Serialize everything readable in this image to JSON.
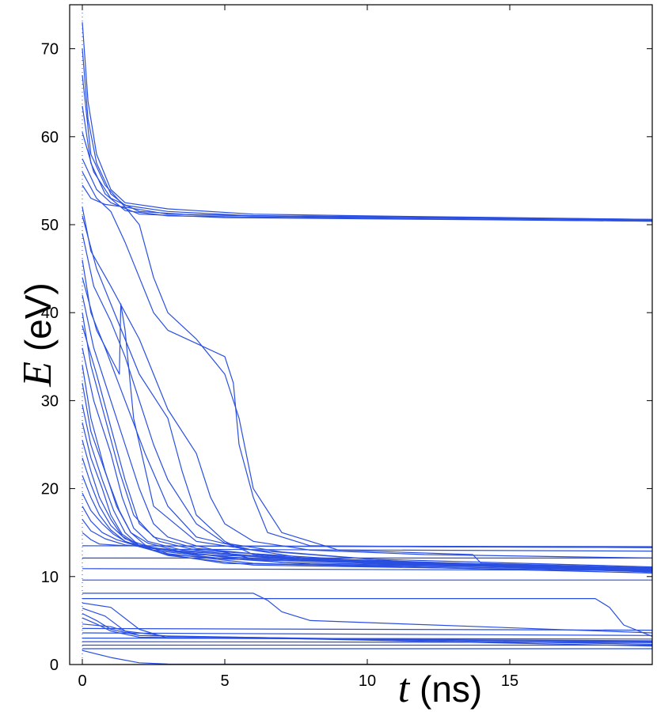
{
  "chart_data": {
    "type": "line",
    "title": "",
    "xlabel": {
      "var": "t",
      "unit": " (ns)"
    },
    "ylabel": {
      "var": "E",
      "unit": " (eV)"
    },
    "xlim": [
      0,
      20
    ],
    "ylim": [
      0,
      75
    ],
    "xticks": [
      "0",
      "5",
      "10",
      "15"
    ],
    "yticks": [
      "0",
      "10",
      "20",
      "30",
      "40",
      "50",
      "60",
      "70"
    ],
    "grid": false,
    "legend": "none",
    "line_color": "#2a4fe0",
    "series": [
      {
        "x": [
          0,
          0.2,
          0.5,
          1,
          1.5,
          3,
          6,
          10,
          15,
          20
        ],
        "y": [
          73,
          64,
          58,
          54,
          52.5,
          51.8,
          51.2,
          51,
          50.8,
          50.6
        ]
      },
      {
        "x": [
          0,
          0.2,
          0.5,
          1,
          1.5,
          3,
          6,
          10,
          15,
          20
        ],
        "y": [
          70,
          62,
          57,
          53.5,
          52.2,
          51.5,
          51,
          50.9,
          50.7,
          50.5
        ]
      },
      {
        "x": [
          0,
          0.3,
          0.8,
          1.5,
          3,
          8,
          20
        ],
        "y": [
          67,
          58,
          54.5,
          52,
          51.2,
          50.9,
          50.5
        ]
      },
      {
        "x": [
          0,
          0.3,
          0.8,
          1.5,
          3,
          8,
          20
        ],
        "y": [
          63.5,
          57,
          53.5,
          51.6,
          51,
          50.8,
          50.4
        ]
      },
      {
        "x": [
          0,
          0.4,
          1,
          2,
          4,
          10,
          20
        ],
        "y": [
          60.5,
          56,
          53,
          51.5,
          51.1,
          50.9,
          50.6
        ]
      },
      {
        "x": [
          0,
          0.5,
          1,
          2,
          5,
          20
        ],
        "y": [
          57.5,
          54,
          52.5,
          51.2,
          50.8,
          50.4
        ]
      },
      {
        "x": [
          0,
          0.5,
          1,
          1.5,
          2,
          2.5,
          3,
          4,
          5,
          5.3,
          5.5,
          6,
          6.5,
          8,
          12,
          20
        ],
        "y": [
          56,
          53,
          51.5,
          48,
          44,
          40,
          38,
          36.5,
          35,
          32,
          25,
          19,
          15,
          13.5,
          13.4,
          13.3
        ]
      },
      {
        "x": [
          0,
          0.3,
          0.8,
          1.5,
          2,
          2.5,
          3,
          4,
          5,
          5.5,
          6,
          7,
          9,
          13.7,
          14,
          20
        ],
        "y": [
          54.5,
          53,
          52.3,
          52,
          50,
          44,
          40,
          37,
          33,
          28,
          20,
          15,
          13,
          12.5,
          11.5,
          11
        ]
      },
      {
        "x": [
          0,
          0.3,
          1,
          1.5,
          2,
          2.5,
          3,
          4,
          4.5,
          5,
          6,
          8,
          12,
          20
        ],
        "y": [
          52,
          47,
          43,
          40,
          37,
          33,
          29,
          24,
          19,
          16,
          14,
          13,
          12.5,
          12.1
        ]
      },
      {
        "x": [
          0,
          0.5,
          1,
          1.5,
          2,
          3,
          3.5,
          4,
          5,
          6,
          10,
          20
        ],
        "y": [
          51,
          45,
          41,
          37,
          33,
          28,
          22,
          17,
          14,
          12.5,
          11.5,
          11
        ]
      },
      {
        "x": [
          0,
          0.4,
          1,
          1.5,
          2,
          2.5,
          3,
          4,
          5,
          7,
          12,
          20
        ],
        "y": [
          49,
          43,
          39,
          35,
          30,
          25,
          21,
          16,
          13.8,
          12.8,
          11.5,
          10.9
        ]
      },
      {
        "x": [
          0,
          0.3,
          0.8,
          1.5,
          2.2,
          3,
          4,
          6,
          10,
          20
        ],
        "y": [
          46,
          40,
          36,
          30,
          24,
          18,
          14.5,
          13,
          12,
          11.1
        ]
      },
      {
        "x": [
          0,
          0.5,
          1.3,
          1.35,
          1.5,
          1.8,
          2.5,
          4,
          8,
          20
        ],
        "y": [
          44,
          38,
          33,
          41,
          38,
          28,
          18,
          14,
          12,
          10.8
        ]
      },
      {
        "x": [
          0,
          0.4,
          1,
          1.5,
          2,
          2.5,
          3,
          4,
          6,
          20
        ],
        "y": [
          42,
          36,
          30,
          25,
          20,
          16,
          14.5,
          13.5,
          12,
          10.7
        ]
      },
      {
        "x": [
          0,
          0.3,
          0.8,
          1.3,
          1.8,
          2.5,
          4,
          8,
          20
        ],
        "y": [
          40,
          34,
          28,
          22,
          17,
          14.5,
          13.2,
          12,
          10.6
        ]
      },
      {
        "x": [
          0,
          0.5,
          1,
          1.5,
          2,
          2.7,
          4,
          10,
          20
        ],
        "y": [
          38.5,
          33,
          27,
          21,
          16,
          14,
          13,
          11.8,
          10.9
        ]
      },
      {
        "x": [
          0,
          0.4,
          1,
          1.4,
          1.8,
          2.3,
          3.5,
          8,
          20
        ],
        "y": [
          36,
          30,
          24,
          19,
          15.5,
          14,
          13,
          11.9,
          10.5
        ]
      },
      {
        "x": [
          0,
          0.3,
          0.8,
          1.2,
          1.7,
          2.3,
          3.5,
          7,
          20
        ],
        "y": [
          34,
          28,
          22,
          18,
          15,
          13.8,
          12.8,
          11.6,
          10.8
        ]
      },
      {
        "x": [
          0,
          0.3,
          0.9,
          1.3,
          1.7,
          2.2,
          3,
          6,
          20
        ],
        "y": [
          32,
          26.5,
          21,
          17.5,
          15,
          13.6,
          12.6,
          11.5,
          10.4
        ]
      },
      {
        "x": [
          0,
          0.3,
          0.7,
          1.1,
          1.5,
          2,
          3,
          5,
          20
        ],
        "y": [
          29.5,
          25,
          21,
          17.5,
          15,
          13.5,
          12.5,
          11.5,
          10.7
        ]
      },
      {
        "x": [
          0,
          0.3,
          0.7,
          1,
          1.4,
          2,
          3,
          6,
          20
        ],
        "y": [
          27.5,
          23.5,
          20,
          17,
          14.8,
          13.5,
          12.4,
          11.3,
          10.6
        ]
      },
      {
        "x": [
          0,
          0.3,
          0.6,
          1,
          1.4,
          2,
          3,
          8,
          20
        ],
        "y": [
          25.5,
          22,
          19,
          16.5,
          14.6,
          13.4,
          12.5,
          11.4,
          10.9
        ]
      },
      {
        "x": [
          0,
          0.3,
          0.6,
          1,
          1.5,
          2.5,
          5,
          20
        ],
        "y": [
          23.5,
          20.5,
          18,
          15.8,
          14.3,
          13.2,
          12.2,
          10.8
        ]
      },
      {
        "x": [
          0,
          0.3,
          0.6,
          1,
          1.5,
          2.5,
          5,
          20
        ],
        "y": [
          21.5,
          19,
          17,
          15.3,
          14,
          13,
          12,
          10.6
        ]
      },
      {
        "x": [
          0,
          0.3,
          0.7,
          1.1,
          1.6,
          3,
          8,
          20
        ],
        "y": [
          19.5,
          17.5,
          16,
          14.8,
          13.8,
          13,
          11.8,
          10.9
        ]
      },
      {
        "x": [
          0,
          0.3,
          0.7,
          1.2,
          2,
          4,
          20
        ],
        "y": [
          18,
          16.3,
          15,
          14.2,
          13.4,
          12.5,
          10.8
        ]
      },
      {
        "x": [
          0,
          0.3,
          0.8,
          1.5,
          3,
          20
        ],
        "y": [
          16.5,
          15.2,
          14.3,
          13.6,
          13.1,
          12.9
        ]
      },
      {
        "x": [
          0,
          0.3,
          0.6,
          1.5,
          20
        ],
        "y": [
          15,
          14.2,
          13.7,
          13.5,
          13.3
        ]
      },
      {
        "x": [
          0,
          20
        ],
        "y": [
          13.5,
          13.4
        ]
      },
      {
        "x": [
          0,
          20
        ],
        "y": [
          12.1,
          12.1
        ]
      },
      {
        "x": [
          0,
          20
        ],
        "y": [
          10.9,
          10.7
        ]
      },
      {
        "x": [
          0,
          20
        ],
        "y": [
          9.6,
          9.6
        ]
      },
      {
        "x": [
          0,
          6,
          6.5,
          7,
          8,
          20
        ],
        "y": [
          8.1,
          8.1,
          7.3,
          6,
          5,
          3.6
        ]
      },
      {
        "x": [
          0,
          18,
          18.5,
          19,
          20
        ],
        "y": [
          7.5,
          7.5,
          6.5,
          4.5,
          3.2
        ]
      },
      {
        "x": [
          0,
          1,
          2,
          3,
          20
        ],
        "y": [
          7,
          6.5,
          4,
          3,
          2.7
        ]
      },
      {
        "x": [
          0,
          0.8,
          1.5,
          3,
          20
        ],
        "y": [
          6.4,
          5.5,
          3.8,
          3.2,
          2.5
        ]
      },
      {
        "x": [
          0,
          0.5,
          1,
          2,
          20
        ],
        "y": [
          5.8,
          5,
          4,
          3.3,
          2.3
        ]
      },
      {
        "x": [
          0,
          0.5,
          1,
          2,
          20
        ],
        "y": [
          5.3,
          4.6,
          3.8,
          3.1,
          2.6
        ]
      },
      {
        "x": [
          0,
          1,
          2,
          20
        ],
        "y": [
          4.6,
          4.3,
          3.3,
          2.1
        ]
      },
      {
        "x": [
          0,
          20
        ],
        "y": [
          4.1,
          3.9
        ]
      },
      {
        "x": [
          0,
          20
        ],
        "y": [
          3.6,
          3.3
        ]
      },
      {
        "x": [
          0,
          20
        ],
        "y": [
          3.0,
          2.9
        ]
      },
      {
        "x": [
          0,
          20
        ],
        "y": [
          2.6,
          2.5
        ]
      },
      {
        "x": [
          0,
          20
        ],
        "y": [
          2.2,
          2.2
        ]
      },
      {
        "x": [
          0,
          20
        ],
        "y": [
          1.8,
          1.8
        ]
      },
      {
        "x": [
          0,
          1,
          2,
          3,
          20
        ],
        "y": [
          1.6,
          0.8,
          0.2,
          0.05,
          0.02
        ]
      },
      {
        "x": [
          0,
          20
        ],
        "y": [
          0.0,
          0.0
        ]
      }
    ]
  }
}
